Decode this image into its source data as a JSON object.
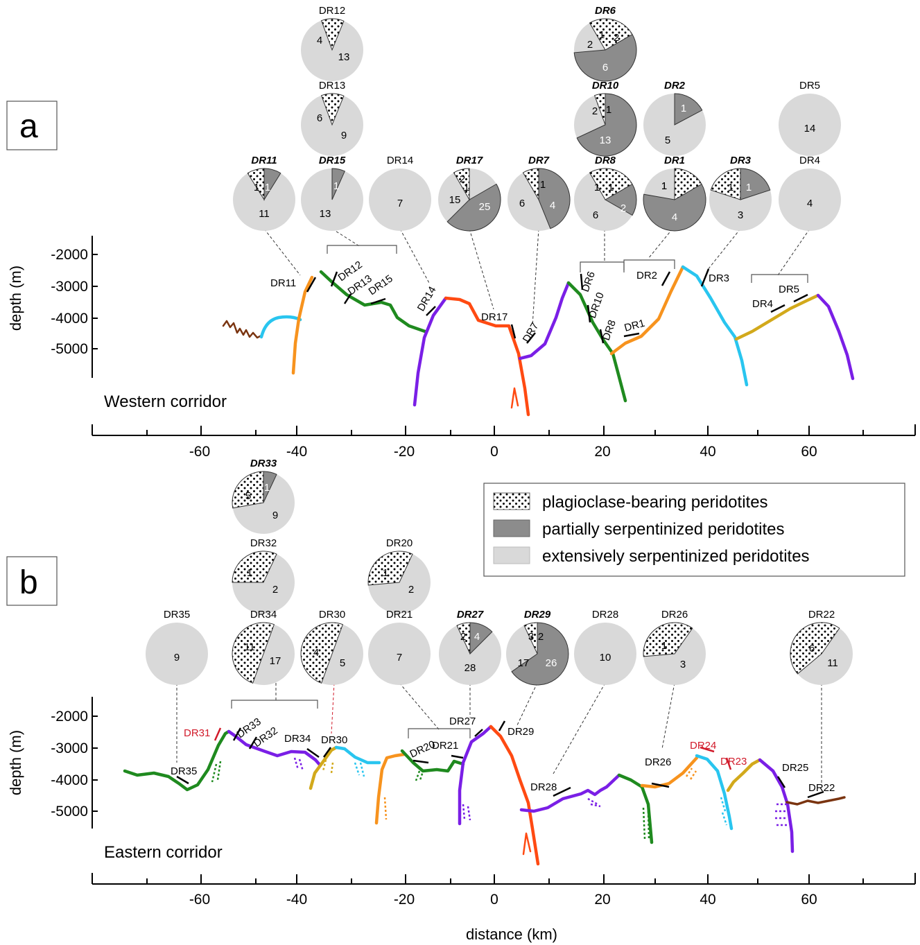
{
  "panels": [
    {
      "id": "a",
      "label": "a",
      "corridor": "Western corridor"
    },
    {
      "id": "b",
      "label": "b",
      "corridor": "Eastern corridor"
    }
  ],
  "axes": {
    "ylabel": "depth (m)",
    "xlabel": "distance (km)",
    "yticks": [
      "-2000",
      "-3000",
      "-4000",
      "-5000"
    ],
    "xticks": [
      "-60",
      "-40",
      "-20",
      "0",
      "20",
      "40",
      "60"
    ]
  },
  "legend": {
    "items": [
      {
        "label": "plagioclase-bearing peridotites",
        "swatch": "dots"
      },
      {
        "label": "partially serpentinized peridotites",
        "color": "#8c8c8c"
      },
      {
        "label": "extensively serpentinized peridotites",
        "color": "#d9d9d9"
      }
    ]
  },
  "colors": {
    "light": "#d9d9d9",
    "dark": "#8c8c8c",
    "red_label": "#d11a2a",
    "green": "#1f8a1f",
    "orange": "#f7931e",
    "cyan": "#29c5ef",
    "purple": "#7a1fe6",
    "red": "#ff4a12",
    "mustard": "#d2a91b",
    "brown": "#7a3410"
  },
  "pies_a": [
    {
      "name": "DR12",
      "bold": false,
      "plag": "4",
      "partial": "",
      "ext": "13"
    },
    {
      "name": "DR13",
      "bold": false,
      "plag": "6",
      "partial": "",
      "ext": "9"
    },
    {
      "name": "DR11",
      "bold": true,
      "plag": "1",
      "partial": "1",
      "ext": "11"
    },
    {
      "name": "DR15",
      "bold": true,
      "plag": "",
      "partial": "1",
      "ext": "13"
    },
    {
      "name": "DR14",
      "bold": false,
      "plag": "",
      "partial": "",
      "ext": "7"
    },
    {
      "name": "DR17",
      "bold": true,
      "plag": "2",
      "partial": "25",
      "ext": "15",
      "extra": "1"
    },
    {
      "name": "DR7",
      "bold": true,
      "plag": "1",
      "partial": "4",
      "ext": "6"
    },
    {
      "name": "DR6",
      "bold": true,
      "plag": "1",
      "partial": "6",
      "ext": "2",
      "extra": "2"
    },
    {
      "name": "DR10",
      "bold": true,
      "plag": "1",
      "partial": "13",
      "ext": "2"
    },
    {
      "name": "DR8",
      "bold": true,
      "plag": "1",
      "partial": "2",
      "ext": "6",
      "extra": "1"
    },
    {
      "name": "DR2",
      "bold": true,
      "plag": "",
      "partial": "1",
      "ext": "5"
    },
    {
      "name": "DR1",
      "bold": true,
      "plag": "",
      "partial": "4",
      "ext": "1",
      "extra": "1"
    },
    {
      "name": "DR5",
      "bold": false,
      "plag": "",
      "partial": "",
      "ext": "14"
    },
    {
      "name": "DR3",
      "bold": true,
      "plag": "1",
      "partial": "1",
      "ext": "3"
    },
    {
      "name": "DR4",
      "bold": false,
      "plag": "",
      "partial": "",
      "ext": "4"
    }
  ],
  "pies_b": [
    {
      "name": "DR33",
      "bold": true,
      "plag": "5",
      "partial": "1",
      "ext": "9"
    },
    {
      "name": "DR32",
      "bold": false,
      "plag": "1",
      "partial": "",
      "ext": "2"
    },
    {
      "name": "DR20",
      "bold": false,
      "plag": "1",
      "partial": "",
      "ext": "2"
    },
    {
      "name": "DR35",
      "bold": false,
      "plag": "",
      "partial": "",
      "ext": "9"
    },
    {
      "name": "DR34",
      "bold": false,
      "plag": "11",
      "partial": "",
      "ext": "17"
    },
    {
      "name": "DR30",
      "bold": false,
      "plag": "4",
      "partial": "",
      "ext": "5"
    },
    {
      "name": "DR21",
      "bold": false,
      "plag": "",
      "partial": "",
      "ext": "7"
    },
    {
      "name": "DR27",
      "bold": true,
      "plag": "2",
      "partial": "4",
      "ext": "28"
    },
    {
      "name": "DR29",
      "bold": true,
      "plag": "3",
      "partial": "26",
      "ext": "17",
      "extra": "2"
    },
    {
      "name": "DR28",
      "bold": false,
      "plag": "",
      "partial": "",
      "ext": "10"
    },
    {
      "name": "DR26",
      "bold": false,
      "plag": "1",
      "partial": "",
      "ext": "3"
    },
    {
      "name": "DR22",
      "bold": false,
      "plag": "6",
      "partial": "",
      "ext": "11"
    }
  ],
  "dredges_a": [
    "DR11",
    "DR12",
    "DR13",
    "DR15",
    "DR14",
    "DR17",
    "DR7",
    "DR6",
    "DR10",
    "DR8",
    "DR1",
    "DR2",
    "DR3",
    "DR4",
    "DR5"
  ],
  "dredges_b": [
    "DR31",
    "DR33",
    "DR32",
    "DR35",
    "DR34",
    "DR30",
    "DR27",
    "DR21",
    "DR20",
    "DR29",
    "DR28",
    "DR26",
    "DR24",
    "DR23",
    "DR25",
    "DR22"
  ]
}
